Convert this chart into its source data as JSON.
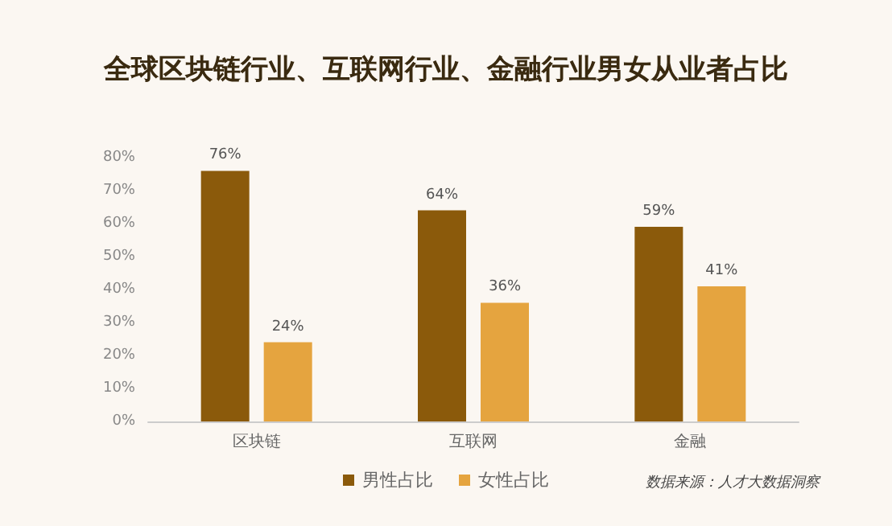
{
  "chart_data": {
    "type": "bar",
    "title": "全球区块链行业、互联网行业、金融行业男女从业者占比",
    "categories": [
      "区块链",
      "互联网",
      "金融"
    ],
    "series": [
      {
        "name": "男性占比",
        "color": "#8b5a0b",
        "values": [
          76,
          64,
          59
        ],
        "value_labels": [
          "76%",
          "64%",
          "59%"
        ]
      },
      {
        "name": "女性占比",
        "color": "#e5a43f",
        "values": [
          24,
          36,
          41
        ],
        "value_labels": [
          "24%",
          "36%",
          "41%"
        ]
      }
    ],
    "ylim": [
      0,
      80
    ],
    "yticks": [
      {
        "value": 0,
        "label": "0%"
      },
      {
        "value": 10,
        "label": "10%"
      },
      {
        "value": 20,
        "label": "20%"
      },
      {
        "value": 30,
        "label": "30%"
      },
      {
        "value": 40,
        "label": "40%"
      },
      {
        "value": 50,
        "label": "50%"
      },
      {
        "value": 60,
        "label": "60%"
      },
      {
        "value": 70,
        "label": "70%"
      },
      {
        "value": 80,
        "label": "80%"
      }
    ],
    "grid": false,
    "legend": "bottom",
    "annotations": [
      "数据来源：人才大数据洞察"
    ]
  }
}
